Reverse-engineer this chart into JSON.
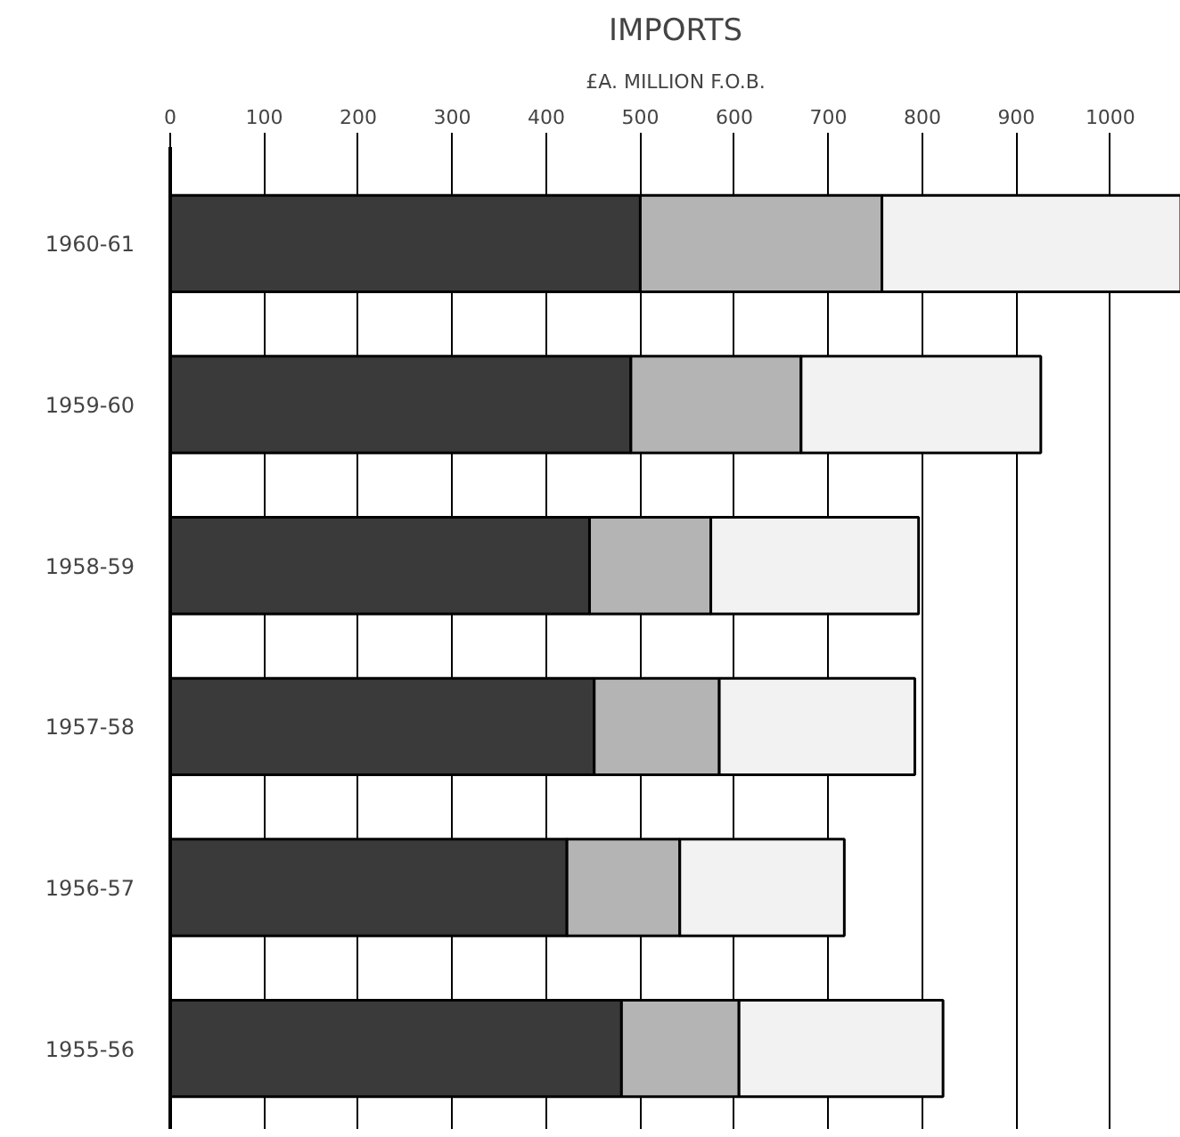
{
  "chart_data": {
    "type": "bar",
    "orientation": "horizontal",
    "stacked": true,
    "title": "IMPORTS",
    "subtitle": "£A. MILLION F.O.B.",
    "categories": [
      "1960-61",
      "1959-60",
      "1958-59",
      "1957-58",
      "1956-57",
      "1955-56"
    ],
    "series": [
      {
        "color": "#3a3a3a",
        "values": [
          500,
          490,
          446,
          451,
          422,
          480
        ]
      },
      {
        "color": "#b4b4b4",
        "values": [
          257,
          181,
          129,
          133,
          120,
          125
        ]
      },
      {
        "color": "#f2f2f2",
        "values": [
          318,
          255,
          221,
          208,
          175,
          217
        ]
      }
    ],
    "xlim": [
      0,
      1075
    ],
    "xticks": [
      0,
      100,
      200,
      300,
      400,
      500,
      600,
      700,
      800,
      900,
      1000
    ],
    "grid": "x"
  }
}
